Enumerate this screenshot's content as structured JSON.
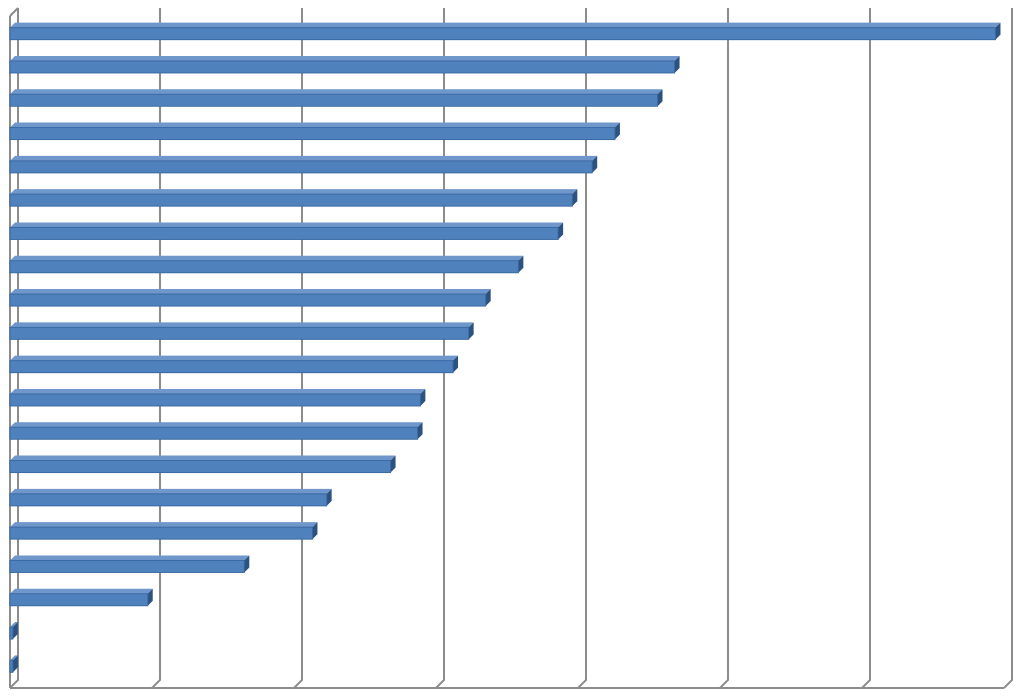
{
  "chart_data": {
    "type": "bar",
    "orientation": "horizontal",
    "categories": [
      null,
      null,
      null,
      null,
      null,
      null,
      null,
      null,
      null,
      null,
      null,
      null,
      null,
      null,
      null,
      null,
      null,
      null,
      null,
      null
    ],
    "values": [
      6.94,
      4.68,
      4.56,
      4.26,
      4.1,
      3.96,
      3.86,
      3.58,
      3.35,
      3.23,
      3.12,
      2.89,
      2.87,
      2.68,
      2.23,
      2.13,
      1.65,
      0.97,
      0.02,
      0.02
    ],
    "color": "#4f81bd",
    "xlim": [
      0,
      7
    ],
    "xticks": [
      0,
      1,
      2,
      3,
      4,
      5,
      6,
      7
    ],
    "grid": true
  }
}
